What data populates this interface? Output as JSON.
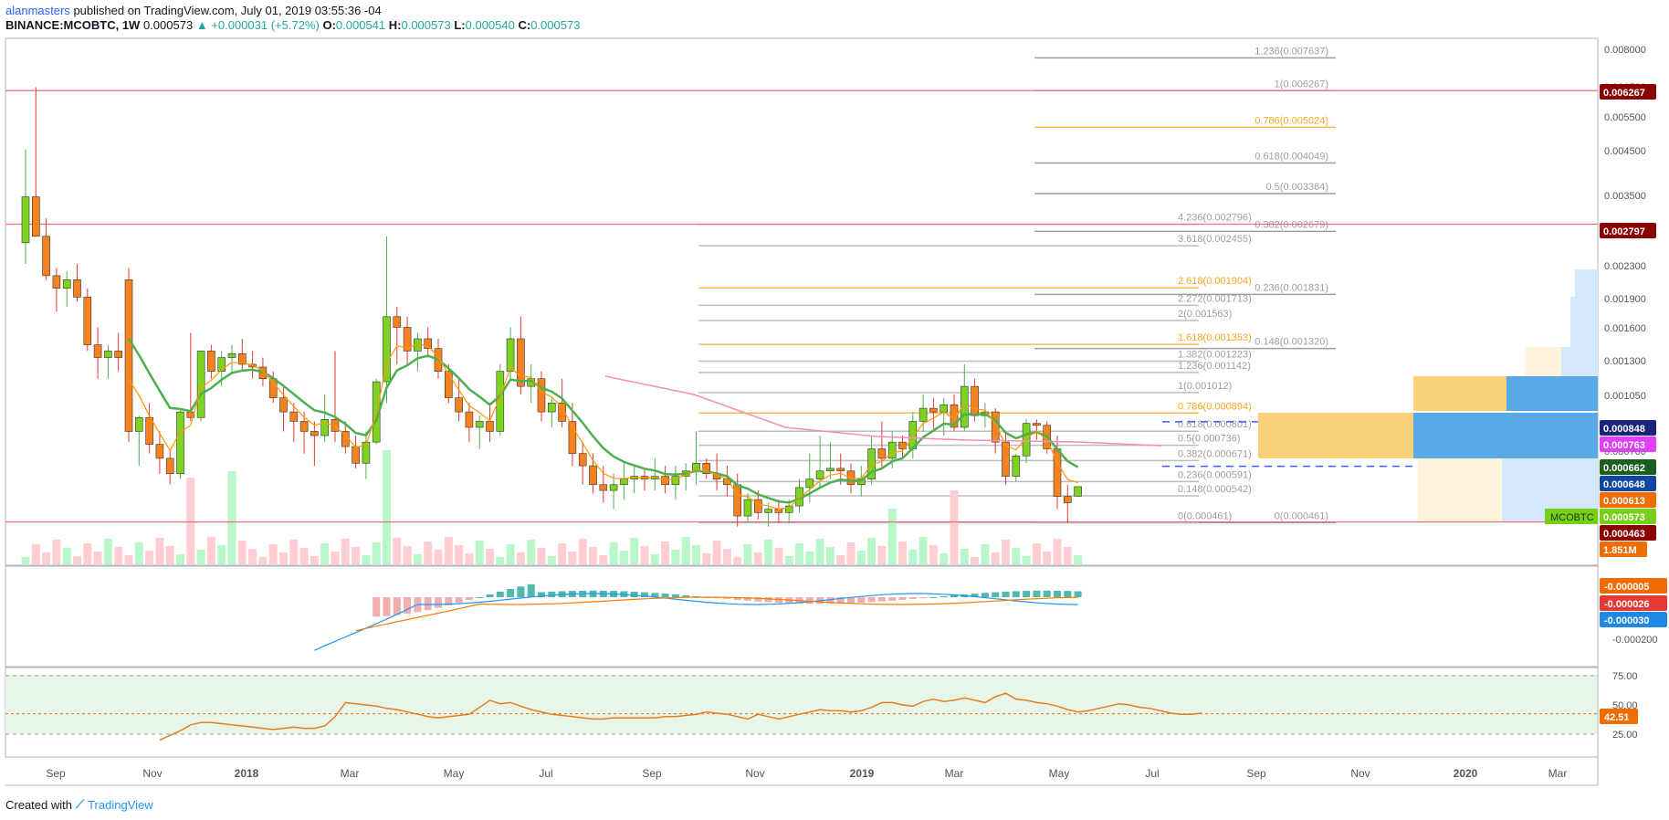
{
  "header": {
    "author": "alanmasters",
    "published": "published on TradingView.com, July 01, 2019 03:55:36 -04",
    "symbol": "BINANCE:MCOBTC, 1W",
    "last": "0.000573",
    "change": "▲ +0.000031 (+5.72%)",
    "o_label": "O:",
    "o": "0.000541",
    "h_label": "H:",
    "h": "0.000573",
    "l_label": "L:",
    "l": "0.000540",
    "c_label": "C:",
    "c": "0.000573"
  },
  "footer": {
    "created": "Created with",
    "brand": "TradingView"
  },
  "colors": {
    "up": "#7ed321",
    "down": "#f5821f",
    "hline": "#e57373",
    "ema": "#4caf50",
    "vol_up": "#b9f6ca",
    "vol_down": "#ffcdd2",
    "macd": "#2196f3",
    "signal": "#f57c00",
    "rsi": "#e67e22"
  },
  "chart_data": [
    {
      "type": "candlestick",
      "x_ticks": [
        "Sep",
        "Nov",
        "2018",
        "Mar",
        "May",
        "Jul",
        "Sep",
        "Nov",
        "2019",
        "Mar",
        "May",
        "Jul",
        "Sep",
        "Nov",
        "2020",
        "Mar"
      ],
      "y_scale": "log",
      "y_ticks": [
        "0.008000",
        "0.006500",
        "0.005500",
        "0.004500",
        "0.003500",
        "0.002300",
        "0.001900",
        "0.001600",
        "0.001300",
        "0.001050",
        "0.000700"
      ],
      "ohlc_weekly": [
        [
          0.0025,
          0.0044,
          0.0022,
          0.0033
        ],
        [
          0.0033,
          0.0064,
          0.0027,
          0.0026
        ],
        [
          0.0026,
          0.0029,
          0.002,
          0.00205
        ],
        [
          0.00205,
          0.00215,
          0.00165,
          0.0019
        ],
        [
          0.0019,
          0.0021,
          0.0017,
          0.002
        ],
        [
          0.002,
          0.0022,
          0.00175,
          0.0018
        ],
        [
          0.0018,
          0.0019,
          0.0013,
          0.00135
        ],
        [
          0.00135,
          0.0015,
          0.0011,
          0.00125
        ],
        [
          0.00125,
          0.00135,
          0.0011,
          0.0013
        ],
        [
          0.0013,
          0.00145,
          0.00115,
          0.00125
        ],
        [
          0.002,
          0.00215,
          0.00075,
          0.0008
        ],
        [
          0.0008,
          0.00088,
          0.00065,
          0.00087
        ],
        [
          0.00087,
          0.00095,
          0.0007,
          0.00074
        ],
        [
          0.00074,
          0.0008,
          0.00062,
          0.00068
        ],
        [
          0.00068,
          0.00072,
          0.00058,
          0.00062
        ],
        [
          0.00062,
          0.00091,
          0.0006,
          0.0009
        ],
        [
          0.0009,
          0.00145,
          0.00085,
          0.00087
        ],
        [
          0.00087,
          0.00125,
          0.00085,
          0.0013
        ],
        [
          0.0013,
          0.00135,
          0.0011,
          0.00115
        ],
        [
          0.00115,
          0.0013,
          0.00105,
          0.00125
        ],
        [
          0.00125,
          0.00135,
          0.00115,
          0.00128
        ],
        [
          0.00128,
          0.0014,
          0.00115,
          0.0012
        ],
        [
          0.0012,
          0.0013,
          0.0011,
          0.00118
        ],
        [
          0.00118,
          0.00125,
          0.00105,
          0.0011
        ],
        [
          0.0011,
          0.00115,
          0.00095,
          0.00098
        ],
        [
          0.00098,
          0.00105,
          0.0008,
          0.0009
        ],
        [
          0.0009,
          0.00095,
          0.00075,
          0.00085
        ],
        [
          0.00085,
          0.0009,
          0.0007,
          0.0008
        ],
        [
          0.0008,
          0.00085,
          0.00065,
          0.00078
        ],
        [
          0.00078,
          0.001,
          0.00075,
          0.00086
        ],
        [
          0.00086,
          0.0013,
          0.00075,
          0.0008
        ],
        [
          0.0008,
          0.00085,
          0.0007,
          0.00073
        ],
        [
          0.00073,
          0.00078,
          0.00064,
          0.00066
        ],
        [
          0.00066,
          0.0008,
          0.0006,
          0.00075
        ],
        [
          0.00075,
          0.0011,
          0.00074,
          0.00108
        ],
        [
          0.00108,
          0.0026,
          0.00095,
          0.0016
        ],
        [
          0.0016,
          0.0017,
          0.0012,
          0.0015
        ],
        [
          0.0015,
          0.0016,
          0.0012,
          0.0013
        ],
        [
          0.0013,
          0.00145,
          0.00115,
          0.0014
        ],
        [
          0.0014,
          0.0015,
          0.00125,
          0.00132
        ],
        [
          0.00132,
          0.0014,
          0.0011,
          0.00115
        ],
        [
          0.00115,
          0.0012,
          0.00095,
          0.00098
        ],
        [
          0.00098,
          0.0011,
          0.00085,
          0.0009
        ],
        [
          0.0009,
          0.00095,
          0.00075,
          0.00082
        ],
        [
          0.00082,
          0.00088,
          0.00072,
          0.00085
        ],
        [
          0.00085,
          0.00095,
          0.00075,
          0.0008
        ],
        [
          0.0008,
          0.0012,
          0.00078,
          0.00115
        ],
        [
          0.00115,
          0.0015,
          0.0011,
          0.0014
        ],
        [
          0.0014,
          0.0016,
          0.001,
          0.00105
        ],
        [
          0.00105,
          0.0012,
          0.00095,
          0.0011
        ],
        [
          0.0011,
          0.00115,
          0.00085,
          0.0009
        ],
        [
          0.0009,
          0.00098,
          0.00082,
          0.00095
        ],
        [
          0.00095,
          0.0011,
          0.00082,
          0.00085
        ],
        [
          0.00085,
          0.00095,
          0.00065,
          0.0007
        ],
        [
          0.0007,
          0.00075,
          0.00058,
          0.00065
        ],
        [
          0.00065,
          0.0007,
          0.00055,
          0.00058
        ],
        [
          0.00058,
          0.00065,
          0.00052,
          0.00056
        ],
        [
          0.00056,
          0.00062,
          0.0005,
          0.00058
        ],
        [
          0.00058,
          0.00066,
          0.00053,
          0.0006
        ],
        [
          0.0006,
          0.00065,
          0.00055,
          0.00061
        ],
        [
          0.00061,
          0.00064,
          0.00056,
          0.0006
        ],
        [
          0.0006,
          0.00068,
          0.00056,
          0.00061
        ],
        [
          0.00061,
          0.00065,
          0.00055,
          0.00058
        ],
        [
          0.00058,
          0.00065,
          0.00053,
          0.00061
        ],
        [
          0.00061,
          0.00066,
          0.00056,
          0.00063
        ],
        [
          0.00063,
          0.0008,
          0.00058,
          0.00066
        ],
        [
          0.00066,
          0.00068,
          0.0006,
          0.00062
        ],
        [
          0.00062,
          0.0007,
          0.00056,
          0.0006
        ],
        [
          0.0006,
          0.00065,
          0.00054,
          0.00058
        ],
        [
          0.00058,
          0.00062,
          0.00045,
          0.00048
        ],
        [
          0.00048,
          0.00055,
          0.00046,
          0.00053
        ],
        [
          0.00053,
          0.00056,
          0.00047,
          0.00049
        ],
        [
          0.00049,
          0.00052,
          0.00045,
          0.0005
        ],
        [
          0.0005,
          0.00053,
          0.00046,
          0.00049
        ],
        [
          0.00049,
          0.00053,
          0.00046,
          0.00051
        ],
        [
          0.00051,
          0.0006,
          0.00049,
          0.00057
        ],
        [
          0.00057,
          0.0007,
          0.00052,
          0.0006
        ],
        [
          0.0006,
          0.00078,
          0.00057,
          0.00063
        ],
        [
          0.00063,
          0.00075,
          0.0006,
          0.00064
        ],
        [
          0.00064,
          0.0007,
          0.00058,
          0.00063
        ],
        [
          0.00063,
          0.00066,
          0.00055,
          0.00058
        ],
        [
          0.00058,
          0.00065,
          0.00054,
          0.0006
        ],
        [
          0.0006,
          0.00078,
          0.00058,
          0.00072
        ],
        [
          0.00072,
          0.00085,
          0.00064,
          0.00068
        ],
        [
          0.00068,
          0.0008,
          0.00064,
          0.00075
        ],
        [
          0.00075,
          0.00078,
          0.00068,
          0.00072
        ],
        [
          0.00072,
          0.0009,
          0.00068,
          0.00085
        ],
        [
          0.00085,
          0.001,
          0.0008,
          0.00092
        ],
        [
          0.00092,
          0.00098,
          0.0008,
          0.0009
        ],
        [
          0.0009,
          0.00098,
          0.00078,
          0.00094
        ],
        [
          0.00094,
          0.001,
          0.0008,
          0.00082
        ],
        [
          0.00082,
          0.0012,
          0.0008,
          0.00105
        ],
        [
          0.00105,
          0.0011,
          0.00085,
          0.00088
        ],
        [
          0.00088,
          0.00095,
          0.00082,
          0.0009
        ],
        [
          0.0009,
          0.00092,
          0.0007,
          0.00075
        ],
        [
          0.00075,
          0.0008,
          0.00058,
          0.00061
        ],
        [
          0.00061,
          0.0007,
          0.00059,
          0.00069
        ],
        [
          0.00069,
          0.00086,
          0.00066,
          0.00084
        ],
        [
          0.00084,
          0.00086,
          0.00076,
          0.00083
        ],
        [
          0.00083,
          0.00085,
          0.0007,
          0.00072
        ],
        [
          0.00072,
          0.00078,
          0.0005,
          0.00054
        ],
        [
          0.00054,
          0.00058,
          0.00046,
          0.00052
        ],
        [
          0.000541,
          0.000573,
          0.00054,
          0.000573
        ]
      ],
      "ema_last": 0.000662,
      "price_labels": [
        {
          "value": "0.006267",
          "bg": "#8b0000"
        },
        {
          "value": "0.002797",
          "bg": "#8b0000"
        },
        {
          "value": "0.000848",
          "bg": "#1a237e"
        },
        {
          "value": "0.000763",
          "bg": "#e040fb"
        },
        {
          "value": "0.000662",
          "bg": "#1b5e20"
        },
        {
          "value": "0.000648",
          "bg": "#0d47a1"
        },
        {
          "value": "0.000613",
          "bg": "#ef6c00"
        },
        {
          "value": "0.000573",
          "bg": "#76d01a"
        },
        {
          "value": "0.000463",
          "bg": "#8b0000"
        },
        {
          "value": "1.851M",
          "bg": "#ef6c00"
        }
      ],
      "symbol_badge": "MCOBTC",
      "fib_right": [
        "1.236(0.007637)",
        "1(0.006267)",
        "0.786(0.005024)",
        "0.618(0.004049)",
        "0.5(0.003364)",
        "0.382(0.002679)",
        "0.236(0.001831)",
        "0.148(0.001320)",
        "0(0.000461)"
      ],
      "fib_mid": [
        "4.236(0.002796)",
        "3.618(0.002455)",
        "2.618(0.001904)",
        "2.272(0.001713)",
        "2(0.001563)",
        "1.618(0.001353)",
        "1.382(0.001223)",
        "1.236(0.001142)",
        "1(0.001012)",
        "0.786(0.000894)",
        "0.618(0.000801)",
        "0.5(0.000736)",
        "0.382(0.000671)",
        "0.236(0.000591)",
        "0.148(0.000542)",
        "0(0.000461)"
      ]
    },
    {
      "type": "macd",
      "y_ticks": [
        "-0.000200"
      ],
      "labels": [
        {
          "value": "-0.000005",
          "bg": "#ef6c00"
        },
        {
          "value": "-0.000026",
          "bg": "#e53935"
        },
        {
          "value": "-0.000030",
          "bg": "#1e88e5"
        }
      ]
    },
    {
      "type": "rsi",
      "y_ticks": [
        "75.00",
        "50.00",
        "25.00"
      ],
      "last": "42.51",
      "values": [
        20,
        24,
        28,
        33,
        35,
        35,
        34,
        33,
        32,
        31,
        30,
        29,
        30,
        31,
        30,
        30,
        32,
        40,
        52,
        51,
        50,
        49,
        47,
        46,
        44,
        42,
        40,
        39,
        40,
        41,
        42,
        48,
        54,
        51,
        52,
        49,
        46,
        44,
        42,
        41,
        40,
        39,
        38,
        38,
        39,
        39,
        39,
        39,
        39,
        40,
        40,
        41,
        42,
        44,
        43,
        42,
        40,
        38,
        42,
        40,
        38,
        40,
        42,
        44,
        46,
        45,
        45,
        44,
        45,
        48,
        52,
        52,
        50,
        49,
        53,
        55,
        53,
        54,
        56,
        54,
        52,
        57,
        60,
        55,
        54,
        52,
        51,
        49,
        46,
        44,
        45,
        47,
        49,
        51,
        50,
        48,
        47,
        45,
        43,
        42,
        42,
        43
      ]
    }
  ]
}
